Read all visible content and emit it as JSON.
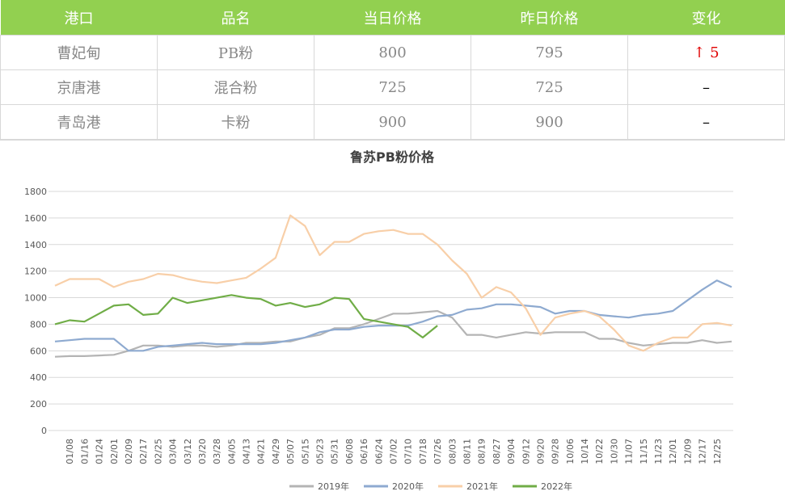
{
  "table": {
    "header": [
      "港口",
      "品名",
      "当日价格",
      "昨日价格",
      "变化"
    ],
    "rows": [
      [
        "曹妃甸",
        "PB粉",
        "800",
        "795",
        "↑ 5"
      ],
      [
        "京唐港",
        "混合粉",
        "725",
        "725",
        "–"
      ],
      [
        "青岛港",
        "卡粉",
        "900",
        "900",
        "–"
      ]
    ]
  },
  "chart_data": {
    "type": "line",
    "title": "鲁苏PB粉价格",
    "categories": [
      null,
      "01/08",
      "01/16",
      "01/24",
      "02/01",
      "02/09",
      "02/17",
      "02/25",
      "03/04",
      "03/12",
      "03/20",
      "03/28",
      "04/05",
      "04/13",
      "04/21",
      "04/29",
      "05/07",
      "05/15",
      "05/23",
      "05/31",
      "06/08",
      "06/16",
      "06/24",
      "07/02",
      "07/10",
      "07/18",
      "07/26",
      "08/03",
      "08/11",
      "08/19",
      "08/27",
      "09/04",
      "09/12",
      "09/20",
      "09/28",
      "10/06",
      "10/14",
      "10/22",
      "10/30",
      "11/07",
      "11/15",
      "11/23",
      "12/01",
      "12/09",
      "12/17",
      "12/25",
      null
    ],
    "series": [
      {
        "name": "2019年",
        "color": "#b4b4b4",
        "values": [
          555,
          560,
          560,
          565,
          570,
          600,
          640,
          640,
          630,
          640,
          640,
          630,
          640,
          660,
          660,
          670,
          670,
          700,
          720,
          770,
          770,
          800,
          840,
          880,
          880,
          890,
          900,
          850,
          720,
          720,
          700,
          720,
          740,
          730,
          740,
          740,
          740,
          690,
          690,
          660,
          640,
          650,
          660,
          660,
          680,
          660,
          670
        ]
      },
      {
        "name": "2020年",
        "color": "#8eaad0",
        "values": [
          670,
          680,
          690,
          690,
          690,
          600,
          600,
          630,
          640,
          650,
          660,
          650,
          650,
          650,
          650,
          660,
          680,
          700,
          740,
          760,
          760,
          780,
          790,
          790,
          790,
          820,
          860,
          870,
          910,
          920,
          950,
          950,
          940,
          930,
          880,
          900,
          900,
          870,
          860,
          850,
          870,
          880,
          900,
          980,
          1060,
          1130,
          1080
        ]
      },
      {
        "name": "2021年",
        "color": "#f8cfa8",
        "values": [
          1090,
          1140,
          1140,
          1140,
          1080,
          1120,
          1140,
          1180,
          1170,
          1140,
          1120,
          1110,
          1130,
          1150,
          1220,
          1300,
          1620,
          1540,
          1320,
          1420,
          1420,
          1480,
          1500,
          1510,
          1480,
          1480,
          1400,
          1280,
          1180,
          1000,
          1080,
          1040,
          920,
          720,
          850,
          880,
          900,
          860,
          760,
          640,
          600,
          660,
          700,
          700,
          800,
          810,
          790
        ]
      },
      {
        "name": "2022年",
        "color": "#70ad47",
        "values": [
          800,
          830,
          820,
          880,
          940,
          950,
          870,
          880,
          1000,
          960,
          980,
          1000,
          1020,
          1000,
          990,
          940,
          960,
          930,
          950,
          1000,
          990,
          840,
          820,
          800,
          780,
          700,
          790,
          null,
          null,
          null,
          null,
          null,
          null,
          null,
          null,
          null,
          null,
          null,
          null,
          null,
          null,
          null,
          null,
          null,
          null,
          null,
          null
        ]
      }
    ],
    "ylim": [
      0,
      1800
    ],
    "yticks": [
      0,
      200,
      400,
      600,
      800,
      1000,
      1200,
      1400,
      1600,
      1800
    ],
    "grid": true,
    "legend": "bottom"
  }
}
